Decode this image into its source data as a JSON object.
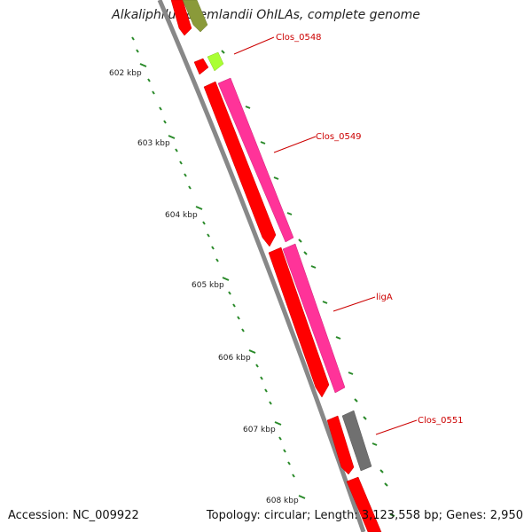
{
  "title": "Alkaliphilus oremlandii OhILAs, complete genome",
  "footer": {
    "accession": "Accession: NC_009922",
    "topology": "Topology: circular; Length: 3,123,558 bp; Genes: 2,950"
  },
  "kbp_labels": [
    "602 kbp",
    "603 kbp",
    "604 kbp",
    "605 kbp",
    "606 kbp",
    "607 kbp",
    "608 kbp"
  ],
  "gene_labels": [
    "Clos_0548",
    "Clos_0549",
    "ligA",
    "Clos_0551"
  ],
  "colors": {
    "cds": "#ff0000",
    "gene_pink": "#ff3399",
    "gene_lime": "#aaff33",
    "gene_olive": "#8a9a3a",
    "gene_grey": "#707070",
    "backbone": "#888888",
    "ticks": "#2a8a2a",
    "label": "#cc0000"
  }
}
